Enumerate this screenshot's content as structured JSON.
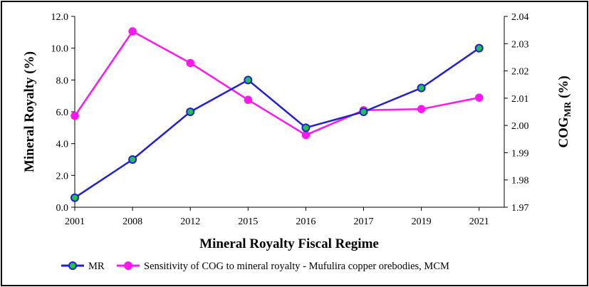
{
  "chart_data": {
    "type": "line",
    "xlabel": "Mineral Royalty Fiscal Regime",
    "categories": [
      "2001",
      "2008",
      "2012",
      "2015",
      "2016",
      "2017",
      "2019",
      "2021"
    ],
    "y_left": {
      "label_main": "Mineral Royalty (%)",
      "range": [
        0,
        12
      ],
      "ticks": [
        0,
        2,
        4,
        6,
        8,
        10,
        12
      ],
      "tick_labels": [
        "0.0",
        "2.0",
        "4.0",
        "6.0",
        "8.0",
        "10.0",
        "12.0"
      ]
    },
    "y_right": {
      "label_main": "COG",
      "label_sub": "MR",
      "label_tail": " (%)",
      "range": [
        1.97,
        2.04
      ],
      "ticks": [
        1.97,
        1.98,
        1.99,
        2.0,
        2.01,
        2.02,
        2.03,
        2.04
      ],
      "tick_labels": [
        "1.97",
        "1.98",
        "1.99",
        "2.00",
        "2.01",
        "2.02",
        "2.03",
        "2.04"
      ]
    },
    "series": [
      {
        "name": "MR",
        "axis": "left",
        "color": "#1f1fd6",
        "marker_fill": "#22c24a",
        "values": [
          0.6,
          3.0,
          6.0,
          8.0,
          5.0,
          6.0,
          7.5,
          10.0
        ]
      },
      {
        "name": "Sensitivity of COG to mineral royalty - Mufulira copper orebodies, MCM",
        "axis": "right",
        "color": "#ff16f0",
        "marker_fill": "#ff16f0",
        "values": [
          2.0035,
          2.0345,
          2.0229,
          2.0094,
          1.9965,
          2.0056,
          2.006,
          2.0102
        ]
      }
    ]
  }
}
